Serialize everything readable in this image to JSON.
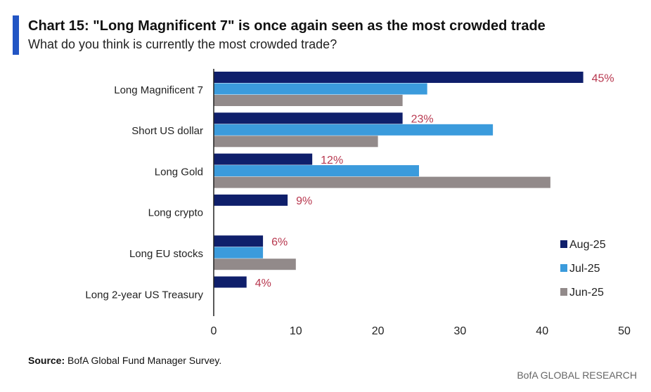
{
  "header": {
    "title": "Chart 15: \"Long Magnificent 7\" is once again seen as the most crowded trade",
    "subtitle": "What do you think is currently the most crowded trade?"
  },
  "footer": {
    "source_label": "Source:",
    "source_text": " BofA Global Fund Manager Survey.",
    "brand": "BofA GLOBAL RESEARCH"
  },
  "chart_data": {
    "type": "bar",
    "orientation": "horizontal",
    "title": "Chart 15: \"Long Magnificent 7\" is once again seen as the most crowded trade",
    "subtitle": "What do you think is currently the most crowded trade?",
    "categories": [
      "Long Magnificent 7",
      "Short US dollar",
      "Long Gold",
      "Long crypto",
      "Long EU stocks",
      "Long 2-year US Treasury"
    ],
    "series": [
      {
        "name": "Aug-25",
        "color": "#0f1f6b",
        "values": [
          45,
          23,
          12,
          9,
          6,
          4
        ]
      },
      {
        "name": "Jul-25",
        "color": "#3b9bdc",
        "values": [
          26,
          34,
          25,
          null,
          6,
          null
        ]
      },
      {
        "name": "Jun-25",
        "color": "#928a8a",
        "values": [
          23,
          20,
          41,
          null,
          10,
          null
        ]
      }
    ],
    "data_labels": [
      "45%",
      "23%",
      "12%",
      "9%",
      "6%",
      "4%"
    ],
    "data_label_color": "#b8384f",
    "xlim": [
      0,
      50
    ],
    "xticks": [
      0,
      10,
      20,
      30,
      40,
      50
    ],
    "legend": "right",
    "grid": false
  }
}
